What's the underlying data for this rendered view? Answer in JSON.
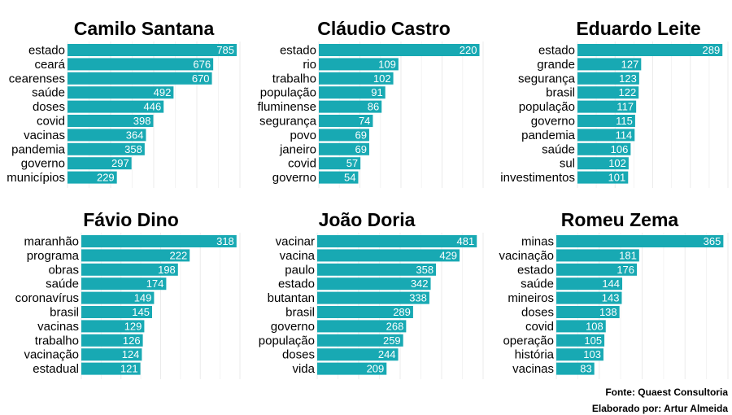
{
  "bar_color": "#18A9B3",
  "caption": {
    "source": "Fonte: Quaest Consultoria",
    "author": "Elaborado por: Artur Almeida"
  },
  "chart_data": [
    {
      "type": "bar",
      "orientation": "horizontal",
      "title": "Camilo Santana",
      "xlim": [
        0,
        800
      ],
      "categories": [
        "estado",
        "ceará",
        "cearenses",
        "saúde",
        "doses",
        "covid",
        "vacinas",
        "pandemia",
        "governo",
        "municípios"
      ],
      "values": [
        785,
        676,
        670,
        492,
        446,
        398,
        364,
        358,
        297,
        229
      ]
    },
    {
      "type": "bar",
      "orientation": "horizontal",
      "title": "Cláudio Castro",
      "xlim": [
        0,
        225
      ],
      "categories": [
        "estado",
        "rio",
        "trabalho",
        "população",
        "fluminense",
        "segurança",
        "povo",
        "janeiro",
        "covid",
        "governo"
      ],
      "values": [
        220,
        109,
        102,
        91,
        86,
        74,
        69,
        69,
        57,
        54
      ]
    },
    {
      "type": "bar",
      "orientation": "horizontal",
      "title": "Eduardo Leite",
      "xlim": [
        0,
        300
      ],
      "categories": [
        "estado",
        "grande",
        "segurança",
        "brasil",
        "população",
        "governo",
        "pandemia",
        "saúde",
        "sul",
        "investimentos"
      ],
      "values": [
        289,
        127,
        123,
        122,
        117,
        115,
        114,
        106,
        102,
        101
      ]
    },
    {
      "type": "bar",
      "orientation": "horizontal",
      "title": "Fávio Dino",
      "xlim": [
        0,
        325
      ],
      "categories": [
        "maranhão",
        "programa",
        "obras",
        "saúde",
        "coronavírus",
        "brasil",
        "vacinas",
        "trabalho",
        "vacinação",
        "estadual"
      ],
      "values": [
        318,
        222,
        198,
        174,
        149,
        145,
        129,
        126,
        124,
        121
      ]
    },
    {
      "type": "bar",
      "orientation": "horizontal",
      "title": "João Doria",
      "xlim": [
        0,
        500
      ],
      "categories": [
        "vacinar",
        "vacina",
        "paulo",
        "estado",
        "butantan",
        "brasil",
        "governo",
        "população",
        "doses",
        "vida"
      ],
      "values": [
        481,
        429,
        358,
        342,
        338,
        289,
        268,
        259,
        244,
        209
      ]
    },
    {
      "type": "bar",
      "orientation": "horizontal",
      "title": "Romeu Zema",
      "xlim": [
        0,
        375
      ],
      "categories": [
        "minas",
        "vacinação",
        "estado",
        "saúde",
        "mineiros",
        "doses",
        "covid",
        "operação",
        "história",
        "vacinas"
      ],
      "values": [
        365,
        181,
        176,
        144,
        143,
        138,
        108,
        105,
        103,
        83
      ]
    }
  ]
}
